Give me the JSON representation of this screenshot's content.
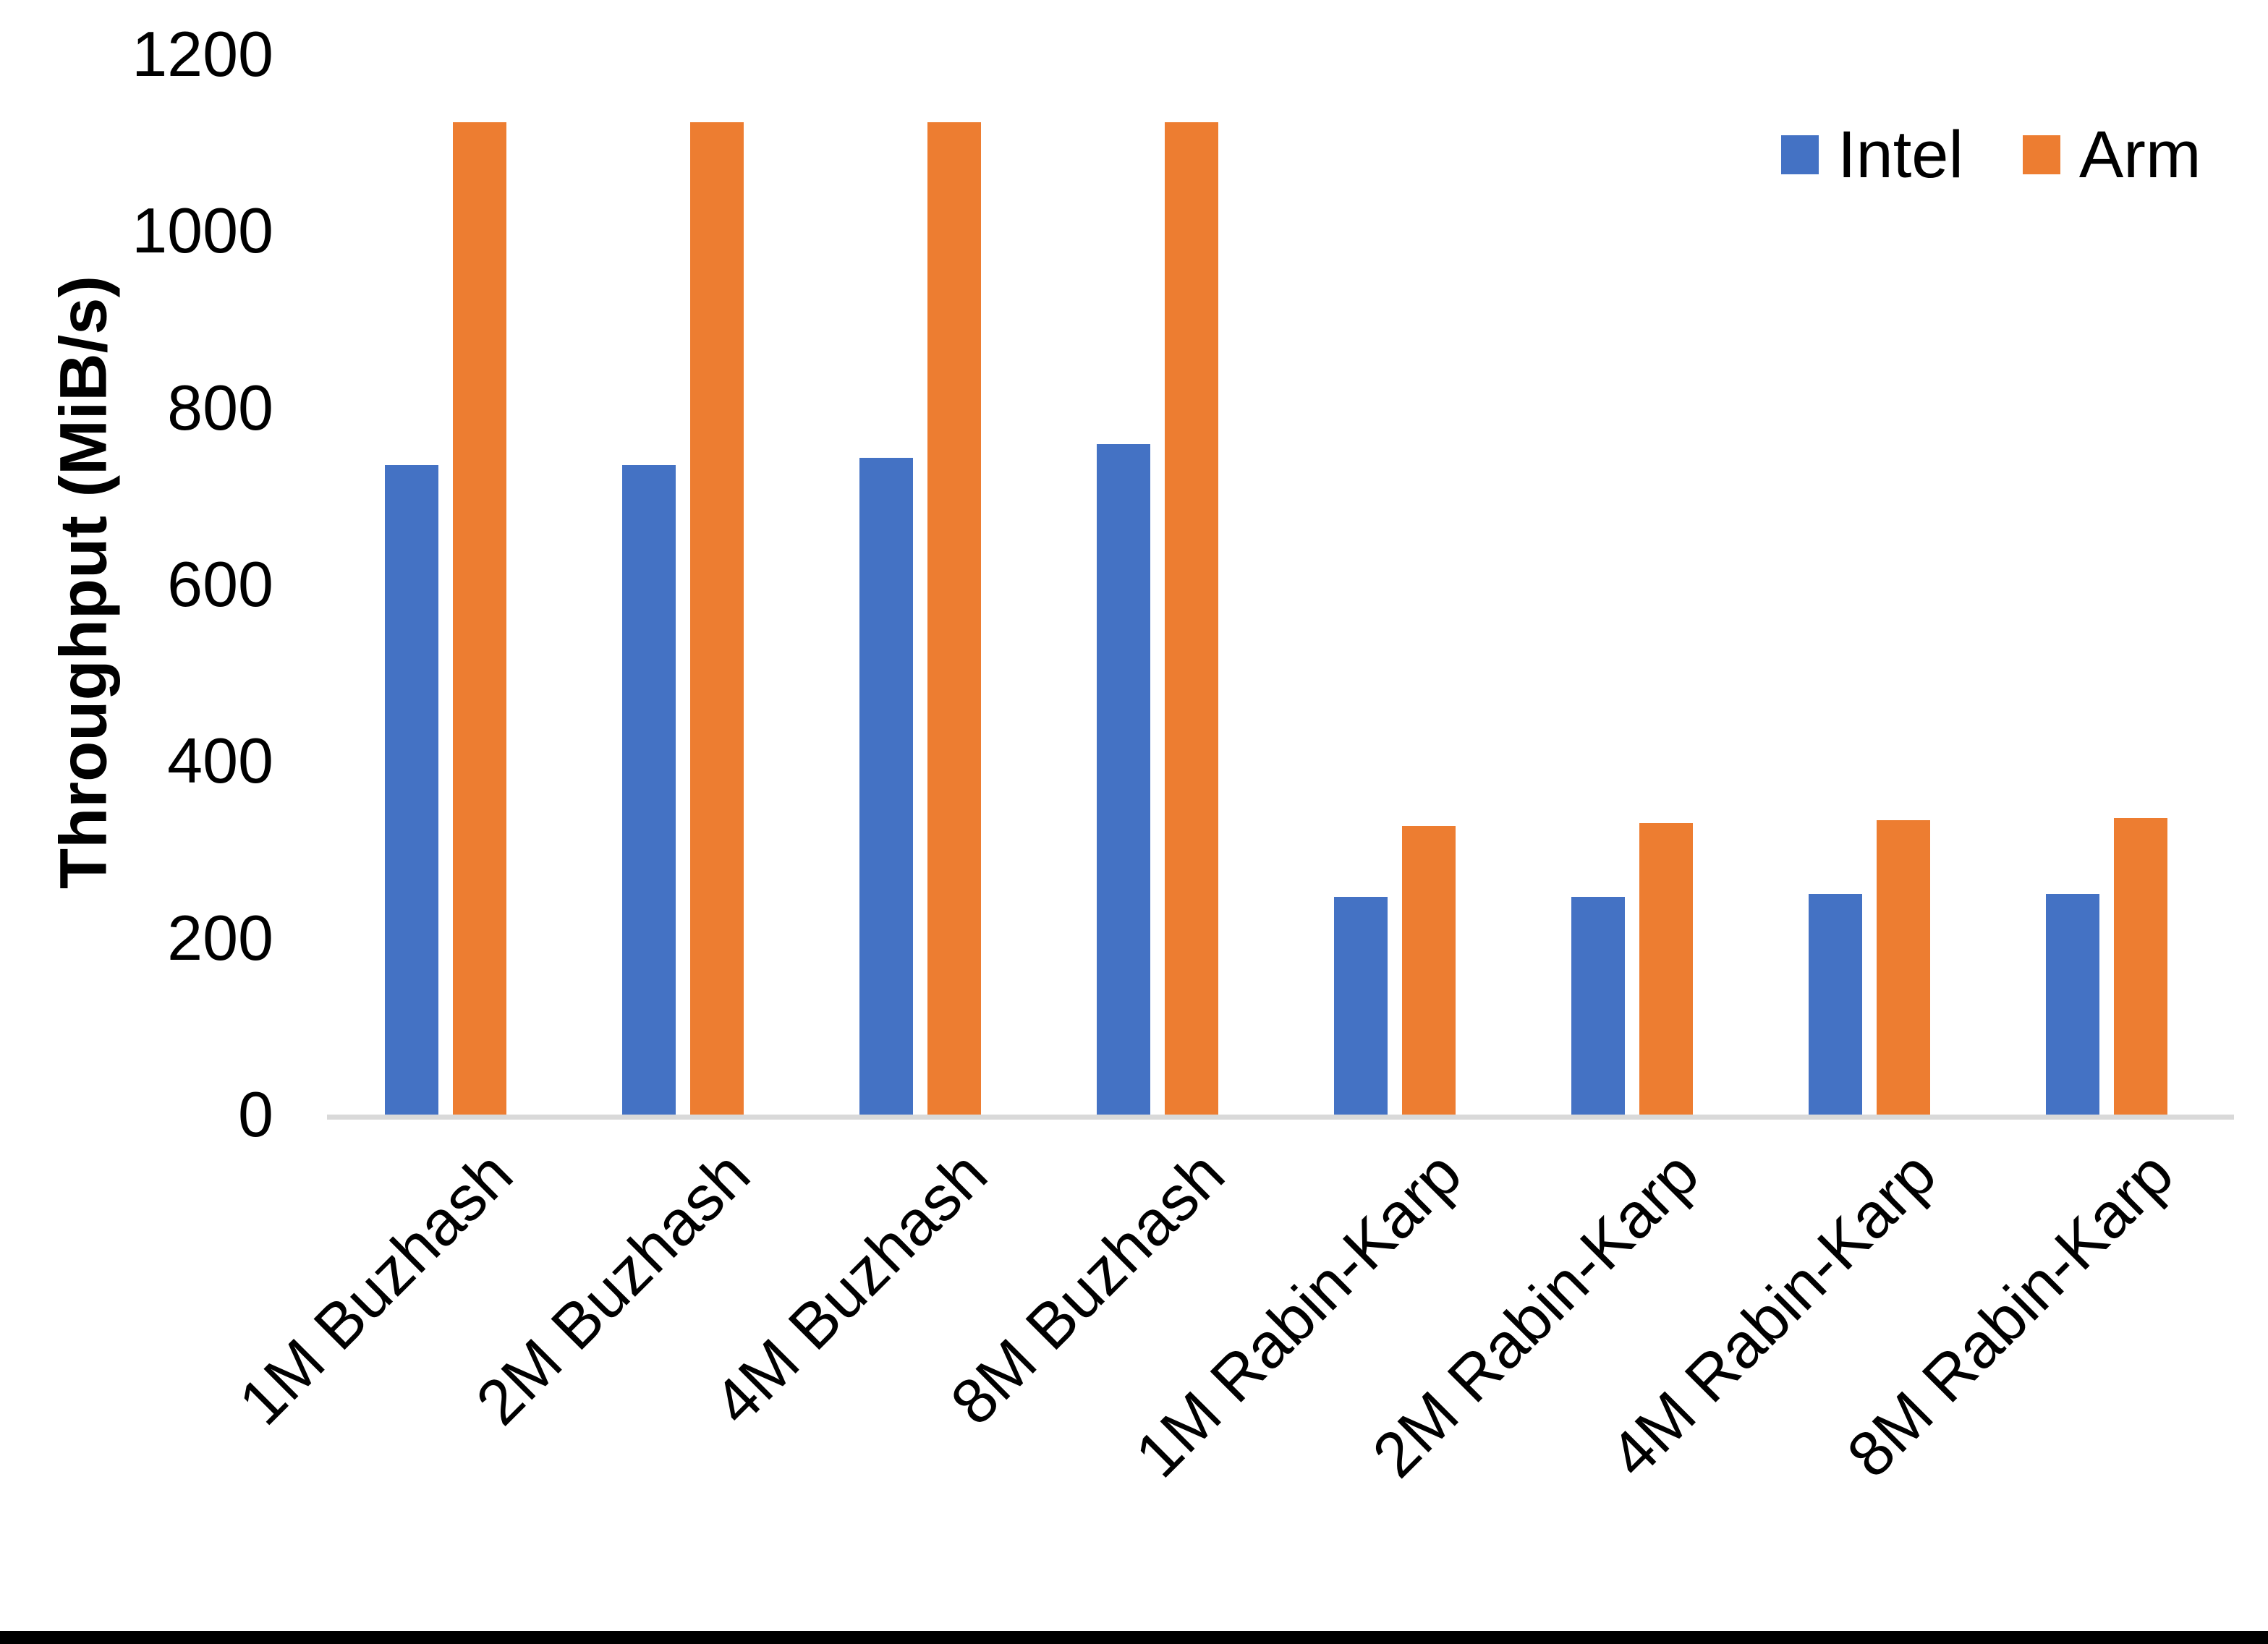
{
  "chart_data": {
    "type": "bar",
    "title": "",
    "xlabel": "",
    "ylabel": "Throughput (MiB/s)",
    "categories": [
      "1M Buzhash",
      "2M Buzhash",
      "4M Buzhash",
      "8M Buzhash",
      "1M Rabin-Karp",
      "2M Rabin-Karp",
      "4M Rabin-Karp",
      "8M Rabin-Karp"
    ],
    "series": [
      {
        "name": "Intel",
        "color": "#4472C4",
        "values": [
          735,
          735,
          743,
          759,
          246,
          246,
          250,
          250
        ]
      },
      {
        "name": "Arm",
        "color": "#ED7D31",
        "values": [
          1123,
          1123,
          1123,
          1123,
          327,
          330,
          333,
          336
        ]
      }
    ],
    "ylim": [
      0,
      1200
    ],
    "yticks": [
      0,
      200,
      400,
      600,
      800,
      1000,
      1200
    ],
    "grid": false,
    "legend_position": "top-right",
    "axis_line_color": "#D9D9D9"
  }
}
